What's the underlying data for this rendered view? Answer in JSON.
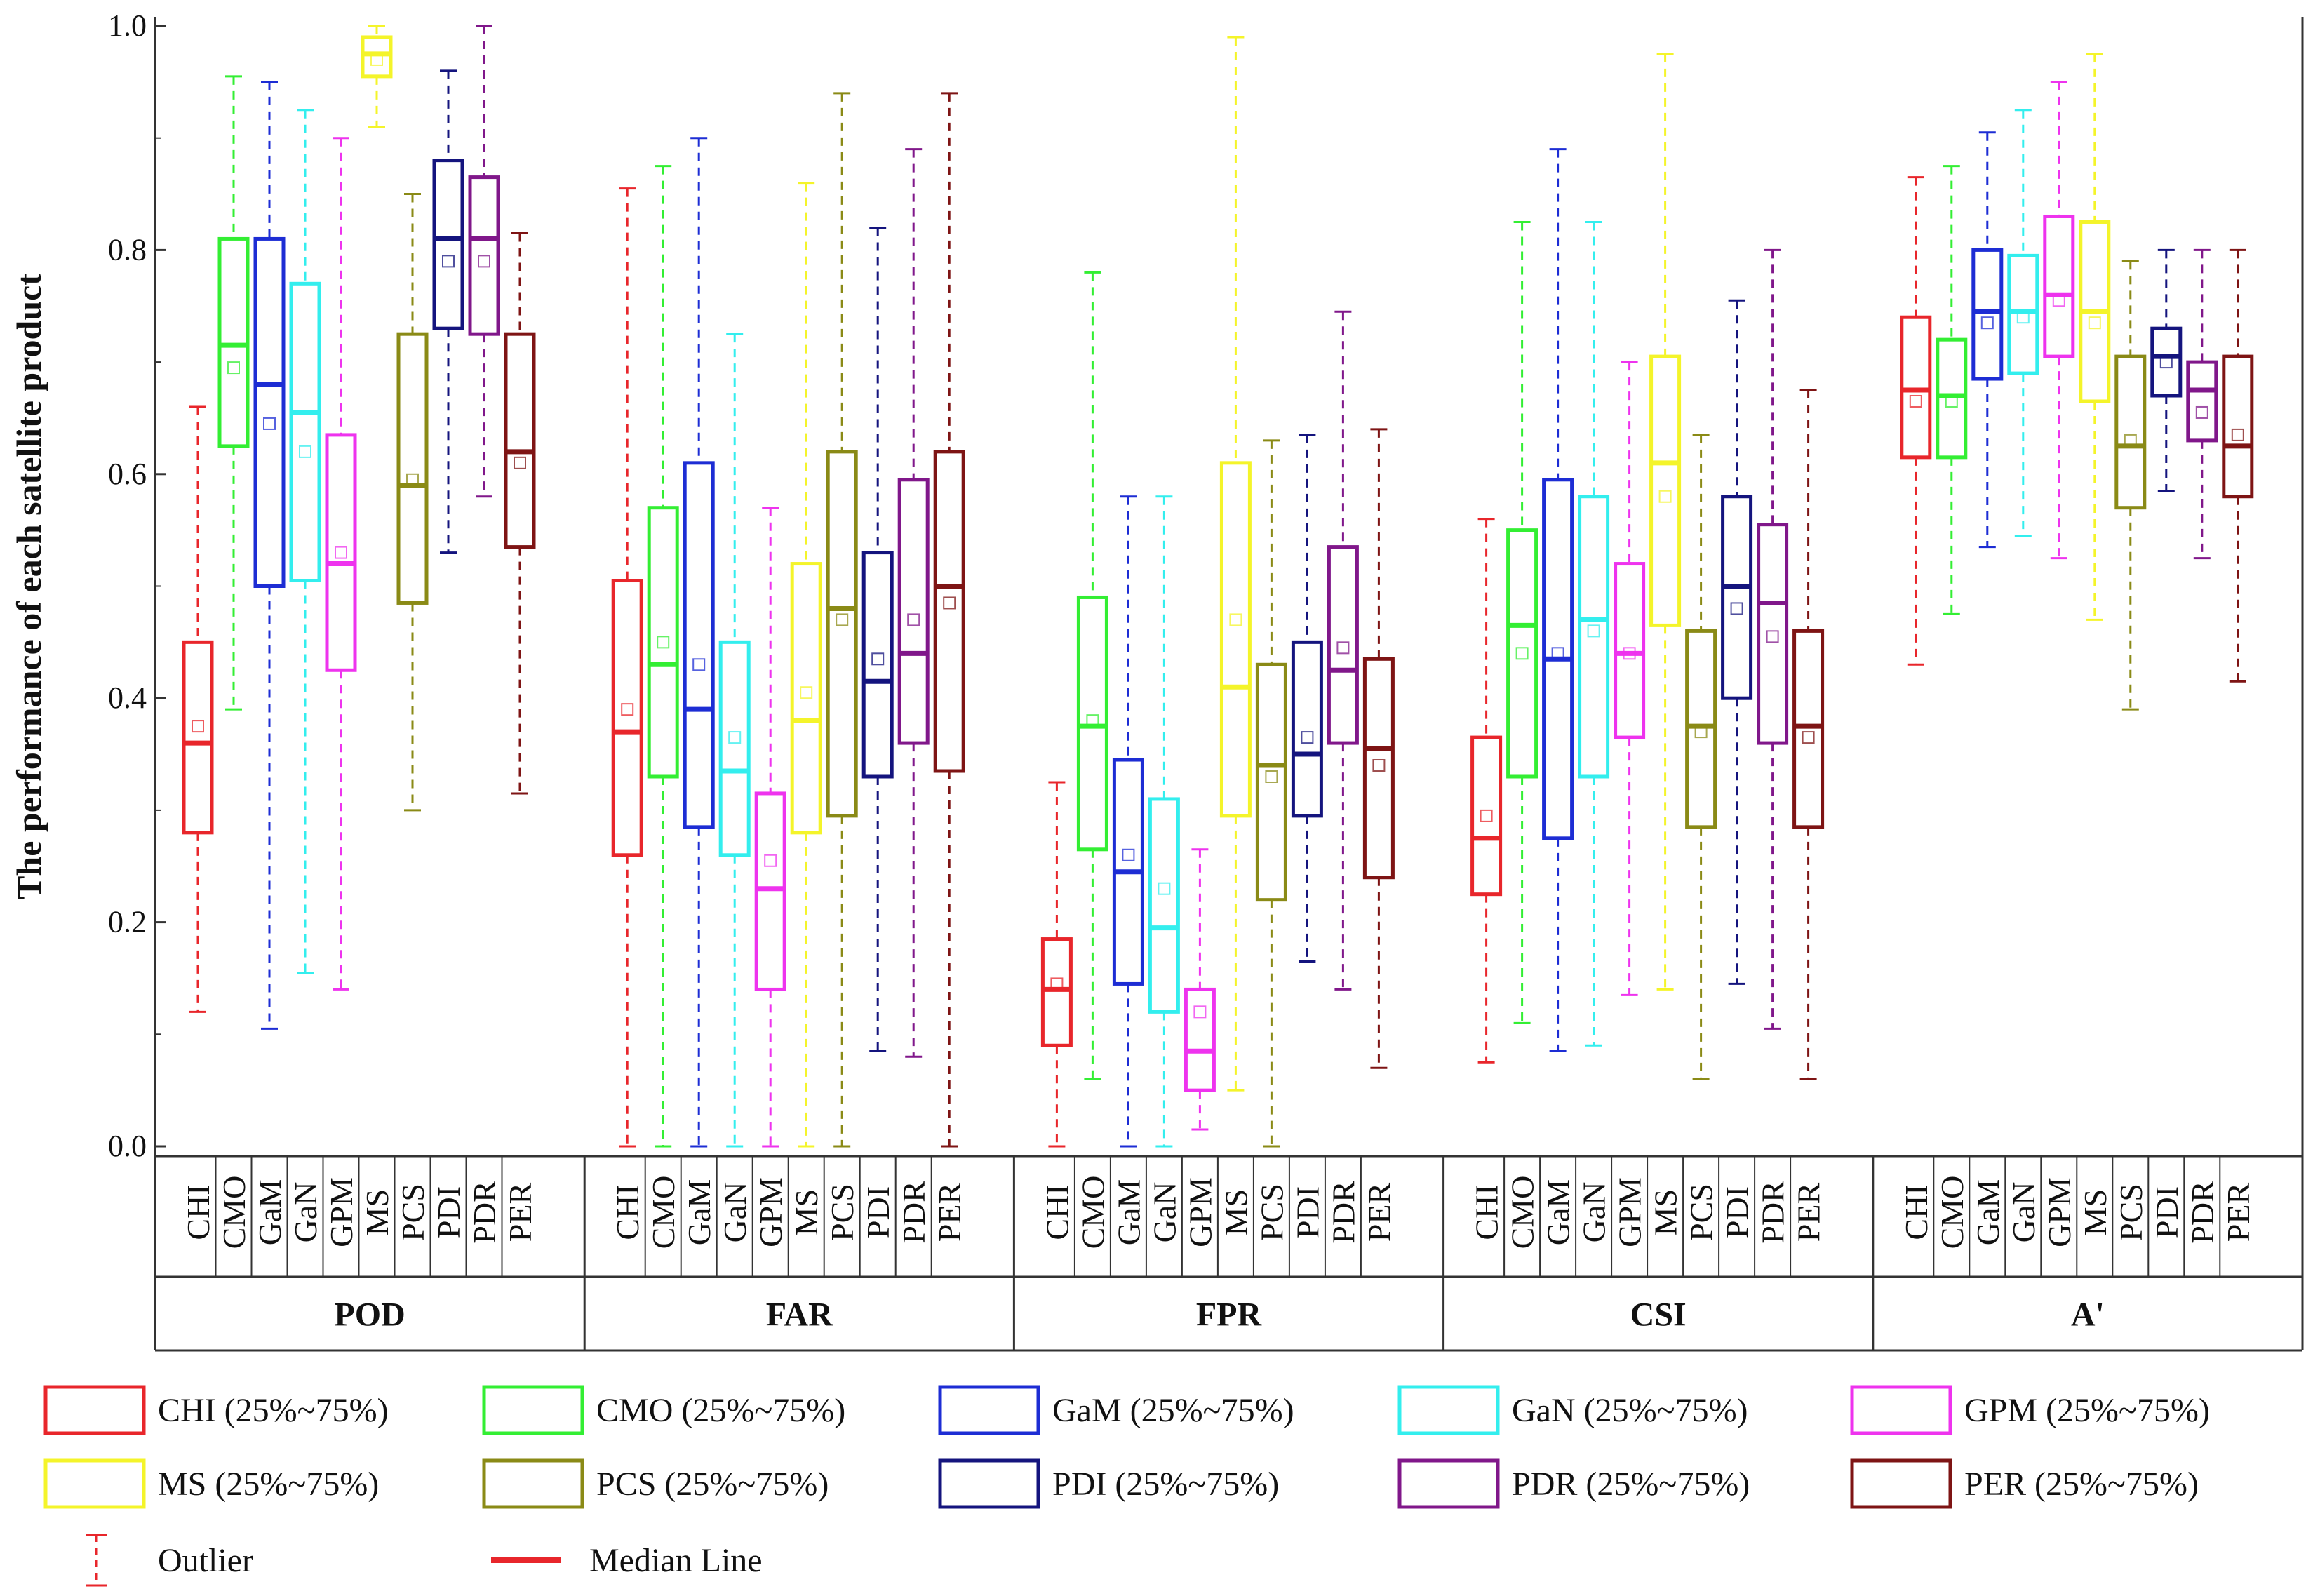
{
  "chart_data": {
    "type": "boxplot",
    "ylabel": "The performance of each satellite product",
    "ylim": [
      0,
      1
    ],
    "yticks": [
      "0.0",
      "0.2",
      "0.4",
      "0.6",
      "0.8",
      "1.0"
    ],
    "products": [
      "CHI",
      "CMO",
      "GaM",
      "GaN",
      "GPM",
      "MS",
      "PCS",
      "PDI",
      "PDR",
      "PER"
    ],
    "colors": [
      "#e8262b",
      "#33ee33",
      "#1d2dd4",
      "#33eeee",
      "#ee33ee",
      "#f4f42a",
      "#8a8a16",
      "#14147e",
      "#80178a",
      "#7e1414"
    ],
    "metrics": [
      {
        "name": "POD",
        "boxes": [
          {
            "min": 0.12,
            "q1": 0.28,
            "median": 0.36,
            "q3": 0.45,
            "max": 0.66,
            "mean": 0.375
          },
          {
            "min": 0.39,
            "q1": 0.625,
            "median": 0.715,
            "q3": 0.81,
            "max": 0.955,
            "mean": 0.695
          },
          {
            "min": 0.105,
            "q1": 0.5,
            "median": 0.68,
            "q3": 0.81,
            "max": 0.95,
            "mean": 0.645
          },
          {
            "min": 0.155,
            "q1": 0.505,
            "median": 0.655,
            "q3": 0.77,
            "max": 0.925,
            "mean": 0.62
          },
          {
            "min": 0.14,
            "q1": 0.425,
            "median": 0.52,
            "q3": 0.635,
            "max": 0.9,
            "mean": 0.53
          },
          {
            "min": 0.91,
            "q1": 0.955,
            "median": 0.975,
            "q3": 0.99,
            "max": 1.0,
            "mean": 0.97
          },
          {
            "min": 0.3,
            "q1": 0.485,
            "median": 0.59,
            "q3": 0.725,
            "max": 0.85,
            "mean": 0.595
          },
          {
            "min": 0.53,
            "q1": 0.73,
            "median": 0.81,
            "q3": 0.88,
            "max": 0.96,
            "mean": 0.79
          },
          {
            "min": 0.58,
            "q1": 0.725,
            "median": 0.81,
            "q3": 0.865,
            "max": 1.0,
            "mean": 0.79
          },
          {
            "min": 0.315,
            "q1": 0.535,
            "median": 0.62,
            "q3": 0.725,
            "max": 0.815,
            "mean": 0.61
          }
        ]
      },
      {
        "name": "FAR",
        "boxes": [
          {
            "min": 0.0,
            "q1": 0.26,
            "median": 0.37,
            "q3": 0.505,
            "max": 0.855,
            "mean": 0.39
          },
          {
            "min": 0.0,
            "q1": 0.33,
            "median": 0.43,
            "q3": 0.57,
            "max": 0.875,
            "mean": 0.45
          },
          {
            "min": 0.0,
            "q1": 0.285,
            "median": 0.39,
            "q3": 0.61,
            "max": 0.9,
            "mean": 0.43
          },
          {
            "min": 0.0,
            "q1": 0.26,
            "median": 0.335,
            "q3": 0.45,
            "max": 0.725,
            "mean": 0.365
          },
          {
            "min": 0.0,
            "q1": 0.14,
            "median": 0.23,
            "q3": 0.315,
            "max": 0.57,
            "mean": 0.255
          },
          {
            "min": 0.0,
            "q1": 0.28,
            "median": 0.38,
            "q3": 0.52,
            "max": 0.86,
            "mean": 0.405
          },
          {
            "min": 0.0,
            "q1": 0.295,
            "median": 0.48,
            "q3": 0.62,
            "max": 0.94,
            "mean": 0.47
          },
          {
            "min": 0.085,
            "q1": 0.33,
            "median": 0.415,
            "q3": 0.53,
            "max": 0.82,
            "mean": 0.435
          },
          {
            "min": 0.08,
            "q1": 0.36,
            "median": 0.44,
            "q3": 0.595,
            "max": 0.89,
            "mean": 0.47
          },
          {
            "min": 0.0,
            "q1": 0.335,
            "median": 0.5,
            "q3": 0.62,
            "max": 0.94,
            "mean": 0.485
          }
        ]
      },
      {
        "name": "FPR",
        "boxes": [
          {
            "min": 0.0,
            "q1": 0.09,
            "median": 0.14,
            "q3": 0.185,
            "max": 0.325,
            "mean": 0.145
          },
          {
            "min": 0.06,
            "q1": 0.265,
            "median": 0.375,
            "q3": 0.49,
            "max": 0.78,
            "mean": 0.38
          },
          {
            "min": 0.0,
            "q1": 0.145,
            "median": 0.245,
            "q3": 0.345,
            "max": 0.58,
            "mean": 0.26
          },
          {
            "min": 0.0,
            "q1": 0.12,
            "median": 0.195,
            "q3": 0.31,
            "max": 0.58,
            "mean": 0.23
          },
          {
            "min": 0.015,
            "q1": 0.05,
            "median": 0.085,
            "q3": 0.14,
            "max": 0.265,
            "mean": 0.12
          },
          {
            "min": 0.05,
            "q1": 0.295,
            "median": 0.41,
            "q3": 0.61,
            "max": 0.99,
            "mean": 0.47
          },
          {
            "min": 0.0,
            "q1": 0.22,
            "median": 0.34,
            "q3": 0.43,
            "max": 0.63,
            "mean": 0.33
          },
          {
            "min": 0.165,
            "q1": 0.295,
            "median": 0.35,
            "q3": 0.45,
            "max": 0.635,
            "mean": 0.365
          },
          {
            "min": 0.14,
            "q1": 0.36,
            "median": 0.425,
            "q3": 0.535,
            "max": 0.745,
            "mean": 0.445
          },
          {
            "min": 0.07,
            "q1": 0.24,
            "median": 0.355,
            "q3": 0.435,
            "max": 0.64,
            "mean": 0.34
          }
        ]
      },
      {
        "name": "CSI",
        "boxes": [
          {
            "min": 0.075,
            "q1": 0.225,
            "median": 0.275,
            "q3": 0.365,
            "max": 0.56,
            "mean": 0.295
          },
          {
            "min": 0.11,
            "q1": 0.33,
            "median": 0.465,
            "q3": 0.55,
            "max": 0.825,
            "mean": 0.44
          },
          {
            "min": 0.085,
            "q1": 0.275,
            "median": 0.435,
            "q3": 0.595,
            "max": 0.89,
            "mean": 0.44
          },
          {
            "min": 0.09,
            "q1": 0.33,
            "median": 0.47,
            "q3": 0.58,
            "max": 0.825,
            "mean": 0.46
          },
          {
            "min": 0.135,
            "q1": 0.365,
            "median": 0.44,
            "q3": 0.52,
            "max": 0.7,
            "mean": 0.44
          },
          {
            "min": 0.14,
            "q1": 0.465,
            "median": 0.61,
            "q3": 0.705,
            "max": 0.975,
            "mean": 0.58
          },
          {
            "min": 0.06,
            "q1": 0.285,
            "median": 0.375,
            "q3": 0.46,
            "max": 0.635,
            "mean": 0.37
          },
          {
            "min": 0.145,
            "q1": 0.4,
            "median": 0.5,
            "q3": 0.58,
            "max": 0.755,
            "mean": 0.48
          },
          {
            "min": 0.105,
            "q1": 0.36,
            "median": 0.485,
            "q3": 0.555,
            "max": 0.8,
            "mean": 0.455
          },
          {
            "min": 0.06,
            "q1": 0.285,
            "median": 0.375,
            "q3": 0.46,
            "max": 0.675,
            "mean": 0.365
          }
        ]
      },
      {
        "name": "A'",
        "boxes": [
          {
            "min": 0.43,
            "q1": 0.615,
            "median": 0.675,
            "q3": 0.74,
            "max": 0.865,
            "mean": 0.665
          },
          {
            "min": 0.475,
            "q1": 0.615,
            "median": 0.67,
            "q3": 0.72,
            "max": 0.875,
            "mean": 0.665
          },
          {
            "min": 0.535,
            "q1": 0.685,
            "median": 0.745,
            "q3": 0.8,
            "max": 0.905,
            "mean": 0.735
          },
          {
            "min": 0.545,
            "q1": 0.69,
            "median": 0.745,
            "q3": 0.795,
            "max": 0.925,
            "mean": 0.74
          },
          {
            "min": 0.525,
            "q1": 0.705,
            "median": 0.76,
            "q3": 0.83,
            "max": 0.95,
            "mean": 0.755
          },
          {
            "min": 0.47,
            "q1": 0.665,
            "median": 0.745,
            "q3": 0.825,
            "max": 0.975,
            "mean": 0.735
          },
          {
            "min": 0.39,
            "q1": 0.57,
            "median": 0.625,
            "q3": 0.705,
            "max": 0.79,
            "mean": 0.63
          },
          {
            "min": 0.585,
            "q1": 0.67,
            "median": 0.705,
            "q3": 0.73,
            "max": 0.8,
            "mean": 0.7
          },
          {
            "min": 0.525,
            "q1": 0.63,
            "median": 0.675,
            "q3": 0.7,
            "max": 0.8,
            "mean": 0.655
          },
          {
            "min": 0.415,
            "q1": 0.58,
            "median": 0.625,
            "q3": 0.705,
            "max": 0.8,
            "mean": 0.635
          }
        ]
      }
    ],
    "legend": {
      "items": [
        "CHI (25%~75%)",
        "CMO (25%~75%)",
        "GaM (25%~75%)",
        "GaN (25%~75%)",
        "GPM (25%~75%)",
        "MS (25%~75%)",
        "PCS (25%~75%)",
        "PDI (25%~75%)",
        "PDR (25%~75%)",
        "PER (25%~75%)"
      ],
      "outlier_label": "Outlier",
      "median_label": "Median Line"
    }
  }
}
